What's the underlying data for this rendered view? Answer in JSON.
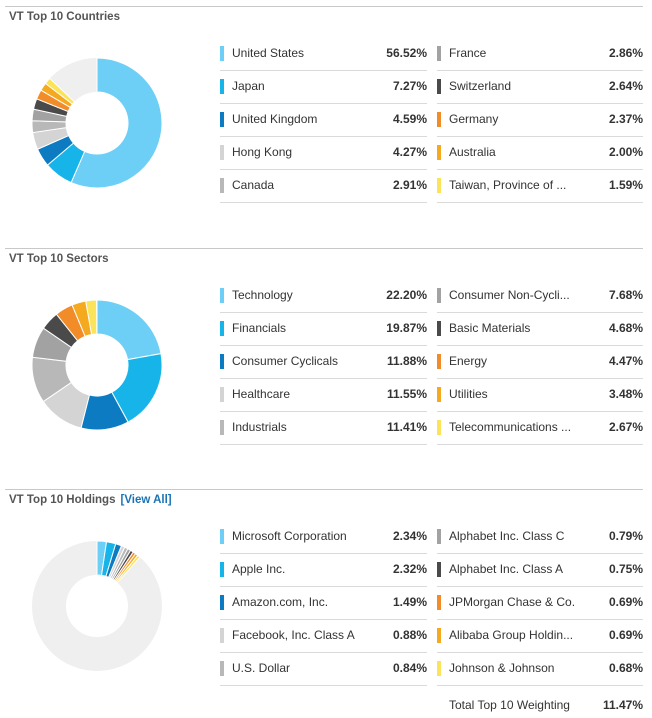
{
  "colors": [
    "#6dcff6",
    "#17b4e9",
    "#0c7bc2",
    "#d4d4d4",
    "#b8b8b8",
    "#a2a2a2",
    "#4a4a4a",
    "#f28c28",
    "#f4a91f",
    "#fbe35a"
  ],
  "countries": {
    "title": "VT Top 10 Countries",
    "left": [
      {
        "name": "United States",
        "value": "56.52%"
      },
      {
        "name": "Japan",
        "value": "7.27%"
      },
      {
        "name": "United Kingdom",
        "value": "4.59%"
      },
      {
        "name": "Hong Kong",
        "value": "4.27%"
      },
      {
        "name": "Canada",
        "value": "2.91%"
      }
    ],
    "right": [
      {
        "name": "France",
        "value": "2.86%"
      },
      {
        "name": "Switzerland",
        "value": "2.64%"
      },
      {
        "name": "Germany",
        "value": "2.37%"
      },
      {
        "name": "Australia",
        "value": "2.00%"
      },
      {
        "name": "Taiwan, Province of ...",
        "value": "1.59%"
      }
    ]
  },
  "sectors": {
    "title": "VT Top 10 Sectors",
    "left": [
      {
        "name": "Technology",
        "value": "22.20%"
      },
      {
        "name": "Financials",
        "value": "19.87%"
      },
      {
        "name": "Consumer Cyclicals",
        "value": "11.88%"
      },
      {
        "name": "Healthcare",
        "value": "11.55%"
      },
      {
        "name": "Industrials",
        "value": "11.41%"
      }
    ],
    "right": [
      {
        "name": "Consumer Non-Cycli...",
        "value": "7.68%"
      },
      {
        "name": "Basic Materials",
        "value": "4.68%"
      },
      {
        "name": "Energy",
        "value": "4.47%"
      },
      {
        "name": "Utilities",
        "value": "3.48%"
      },
      {
        "name": "Telecommunications ...",
        "value": "2.67%"
      }
    ]
  },
  "holdings": {
    "title": "VT Top 10 Holdings",
    "view_all": "[View All]",
    "left": [
      {
        "name": "Microsoft Corporation",
        "value": "2.34%"
      },
      {
        "name": "Apple Inc.",
        "value": "2.32%"
      },
      {
        "name": "Amazon.com, Inc.",
        "value": "1.49%"
      },
      {
        "name": "Facebook, Inc. Class A",
        "value": "0.88%"
      },
      {
        "name": "U.S. Dollar",
        "value": "0.84%"
      }
    ],
    "right": [
      {
        "name": "Alphabet Inc. Class C",
        "value": "0.79%"
      },
      {
        "name": "Alphabet Inc. Class A",
        "value": "0.75%"
      },
      {
        "name": "JPMorgan Chase & Co.",
        "value": "0.69%"
      },
      {
        "name": "Alibaba Group Holdin...",
        "value": "0.69%"
      },
      {
        "name": "Johnson & Johnson",
        "value": "0.68%"
      }
    ],
    "total_label": "Total Top 10 Weighting",
    "total_value": "11.47%"
  },
  "chart_data": [
    {
      "type": "pie",
      "categories": [
        "United States",
        "Japan",
        "United Kingdom",
        "Hong Kong",
        "Canada",
        "France",
        "Switzerland",
        "Germany",
        "Australia",
        "Taiwan, Province of ..."
      ],
      "values": [
        56.52,
        7.27,
        4.59,
        4.27,
        2.91,
        2.86,
        2.64,
        2.37,
        2.0,
        1.59
      ]
    },
    {
      "type": "pie",
      "categories": [
        "Technology",
        "Financials",
        "Consumer Cyclicals",
        "Healthcare",
        "Industrials",
        "Consumer Non-Cycli...",
        "Basic Materials",
        "Energy",
        "Utilities",
        "Telecommunications ..."
      ],
      "values": [
        22.2,
        19.87,
        11.88,
        11.55,
        11.41,
        7.68,
        4.68,
        4.47,
        3.48,
        2.67
      ]
    },
    {
      "type": "pie",
      "categories": [
        "Microsoft Corporation",
        "Apple Inc.",
        "Amazon.com, Inc.",
        "Facebook, Inc. Class A",
        "U.S. Dollar",
        "Alphabet Inc. Class C",
        "Alphabet Inc. Class A",
        "JPMorgan Chase & Co.",
        "Alibaba Group Holdin...",
        "Johnson & Johnson"
      ],
      "values": [
        2.34,
        2.32,
        1.49,
        0.88,
        0.84,
        0.79,
        0.75,
        0.69,
        0.69,
        0.68
      ]
    }
  ]
}
